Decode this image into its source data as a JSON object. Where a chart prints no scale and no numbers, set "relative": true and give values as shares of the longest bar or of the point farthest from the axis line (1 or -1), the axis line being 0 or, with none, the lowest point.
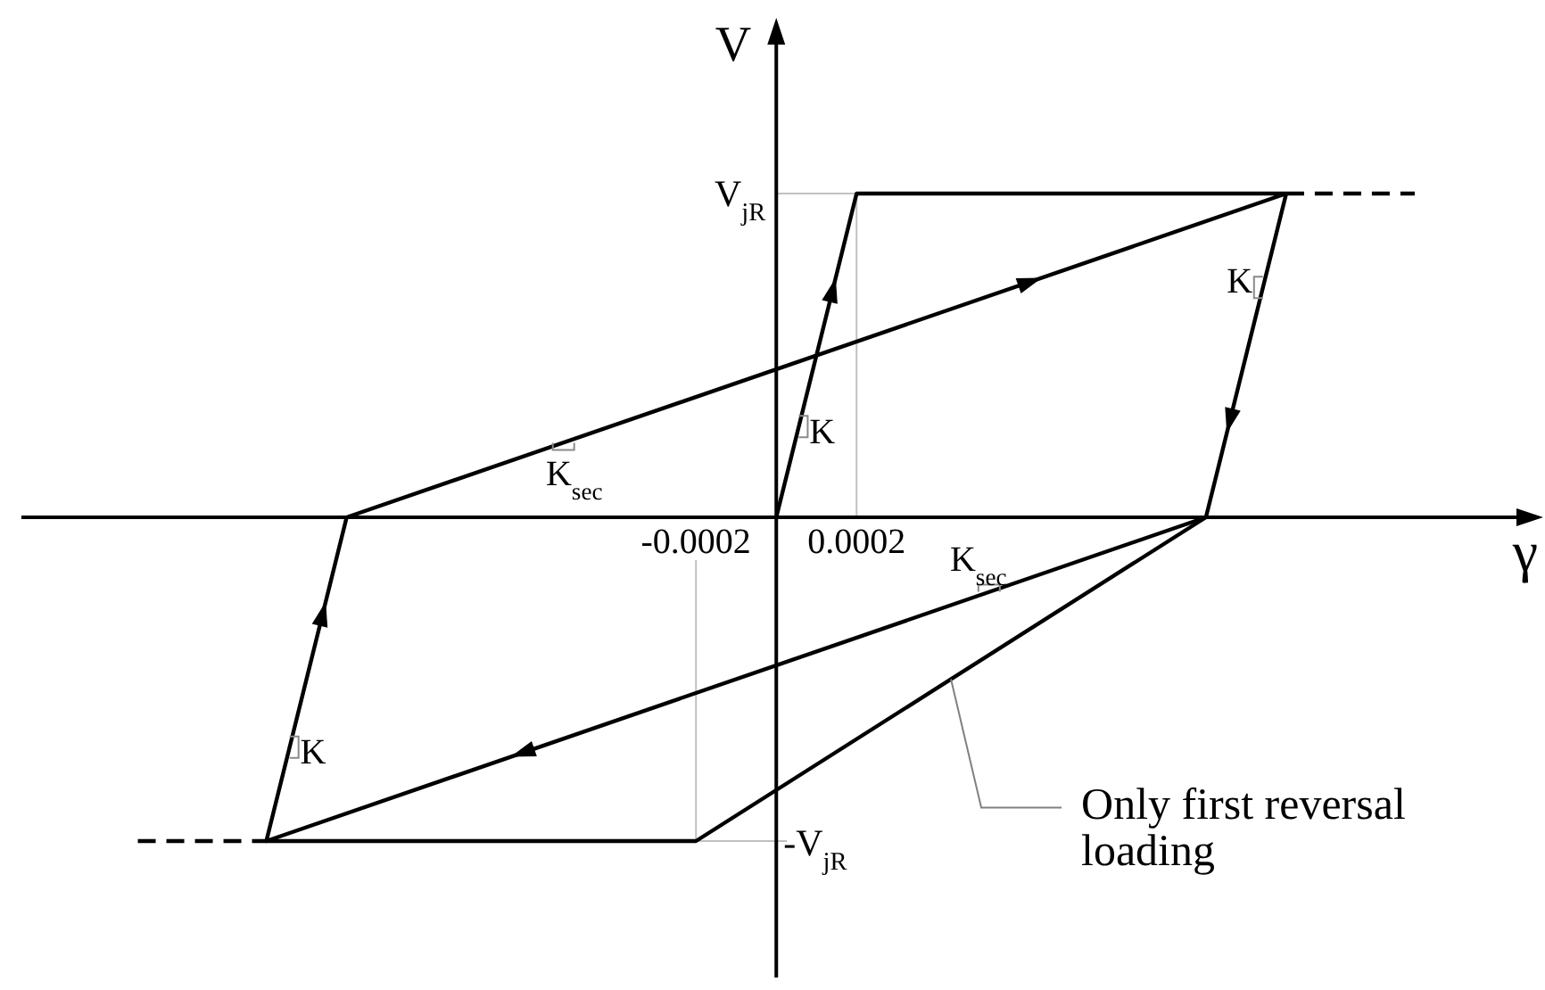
{
  "chart_data": {
    "type": "line",
    "relative": true,
    "xlabel": "γ",
    "ylabel": "V",
    "xlim": [
      -0.00188,
      0.00191
    ],
    "xticks": [
      -0.0002,
      0.0002
    ],
    "series": [
      {
        "color": "#000000",
        "line_style": "solid",
        "x": [
          0,
          0.0002,
          0.00127,
          0.00107,
          -0.00127,
          -0.00107,
          0.00127
        ],
        "values": [
          0,
          1,
          1,
          0,
          -1,
          0,
          1
        ]
      },
      {
        "color": "#000000",
        "line_style": "solid",
        "x": [
          0.00107,
          -0.0002,
          -0.00127
        ],
        "values": [
          0,
          -1,
          -1
        ]
      },
      {
        "color": "#000000",
        "line_style": "dashed",
        "x": [
          0.00127,
          0.00159
        ],
        "values": [
          1,
          1
        ]
      },
      {
        "color": "#000000",
        "line_style": "dashed",
        "x": [
          -0.00159,
          -0.00127
        ],
        "values": [
          -1,
          -1
        ]
      }
    ],
    "ref_lines": [
      {
        "axis": "y",
        "value": 1,
        "label": "V$_{jR}$",
        "color": "#c0c0c0"
      },
      {
        "axis": "y",
        "value": -1,
        "label": "-V$_{jR}$",
        "color": "#c0c0c0"
      },
      {
        "axis": "x",
        "value": 0.0002,
        "color": "#c0c0c0"
      },
      {
        "axis": "x",
        "value": -0.0002,
        "color": "#c0c0c0"
      }
    ],
    "annotations": [
      {
        "text": "K",
        "x": 5.6e-05,
        "y": 0.28
      },
      {
        "text": "K",
        "x": 0.001212,
        "y": 0.71
      },
      {
        "text": "K",
        "x": -0.001212,
        "y": -0.71
      },
      {
        "text": "K$_{sec}$",
        "x": -0.00053,
        "y": 0.23
      },
      {
        "text": "K$_{sec}$",
        "x": 0.00053,
        "y": -0.23
      },
      {
        "text": "Only first reversal loading",
        "x": 0.000435,
        "y": -0.5
      }
    ]
  }
}
